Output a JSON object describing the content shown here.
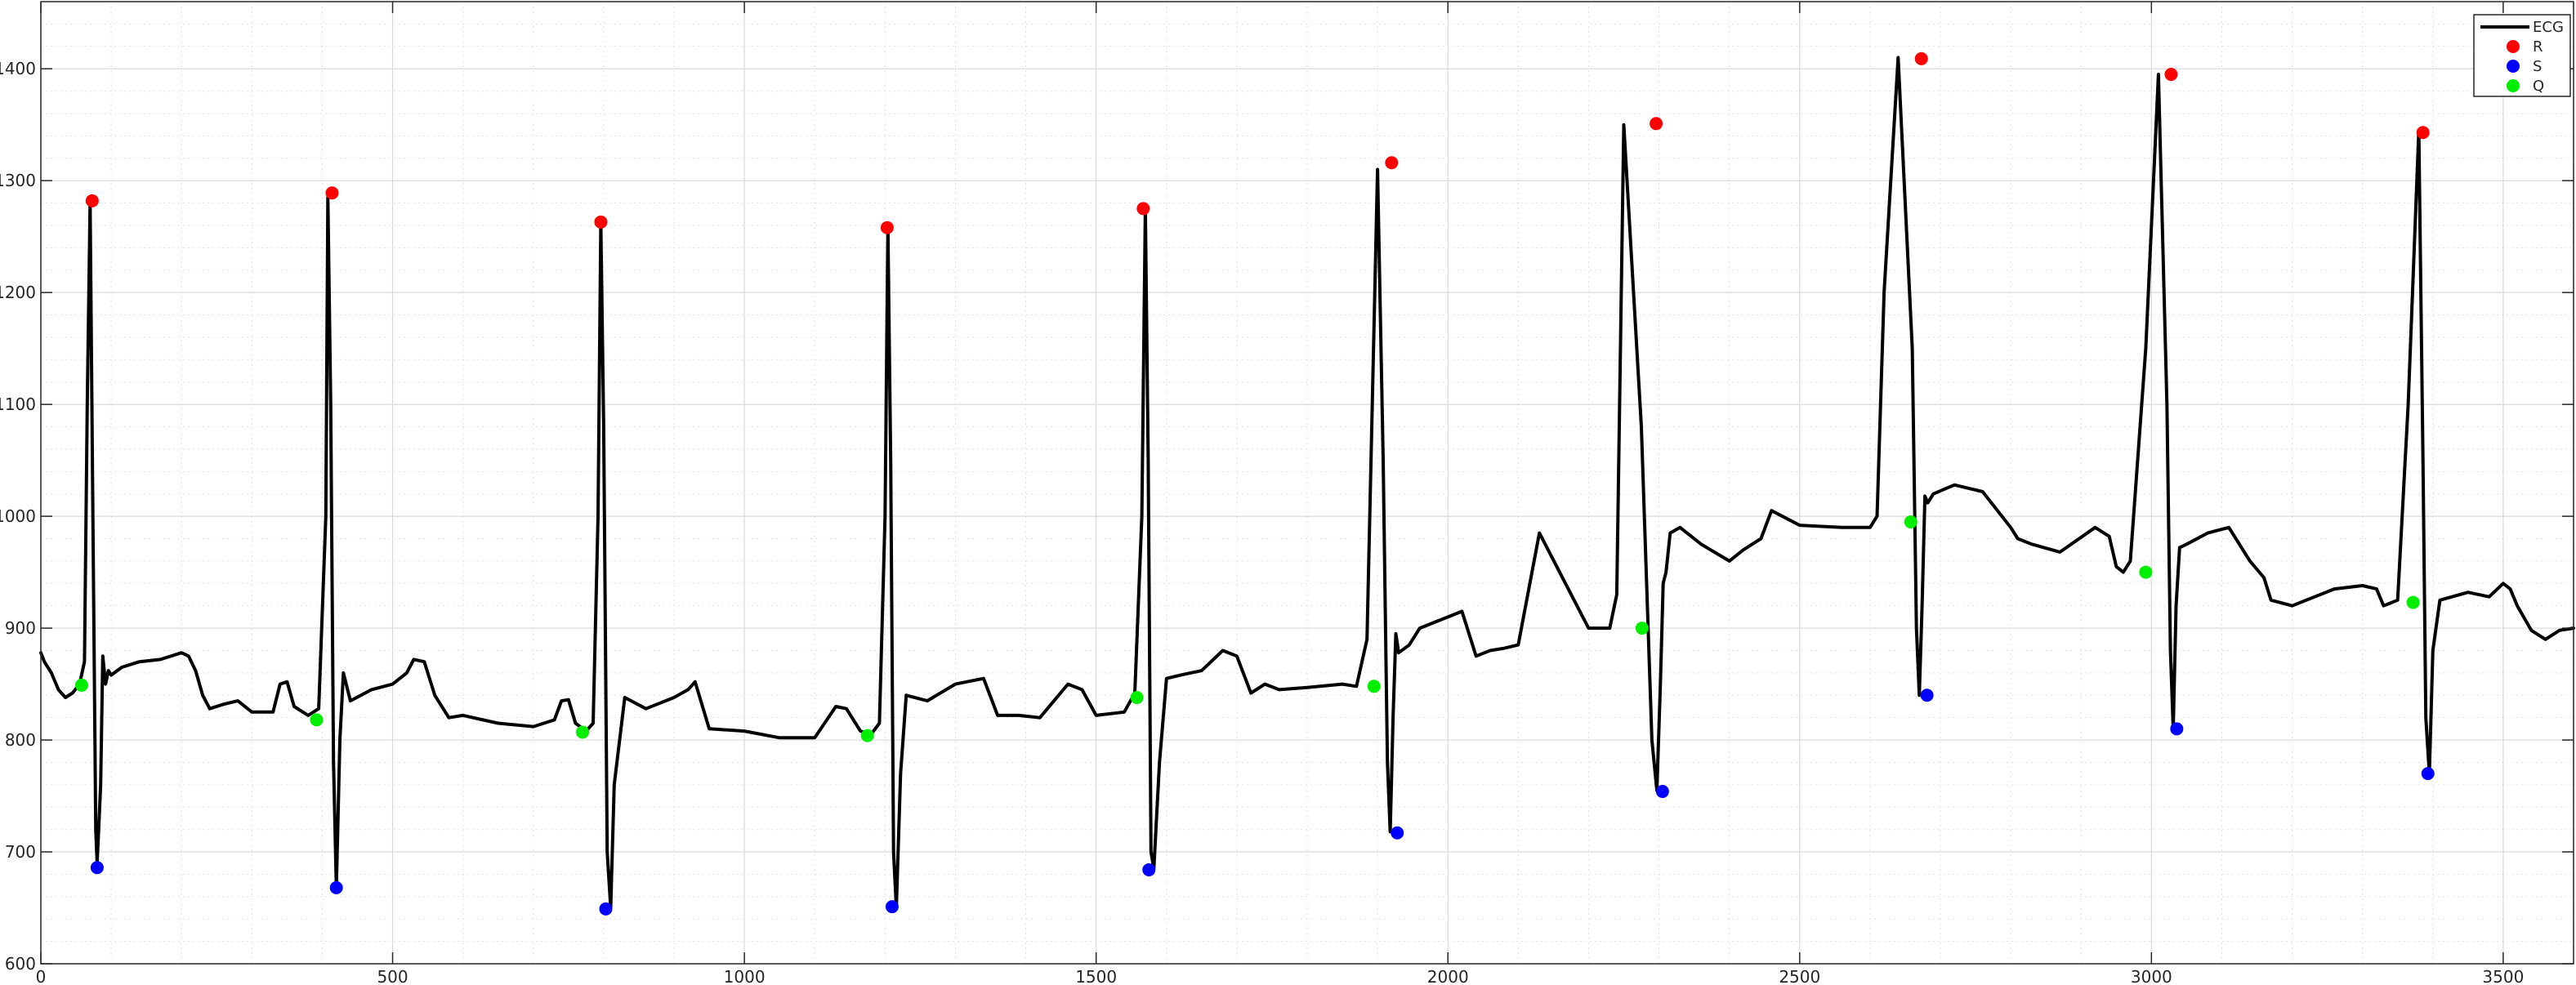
{
  "chart_data": {
    "type": "line",
    "title": "",
    "xlabel": "",
    "ylabel": "",
    "xlim": [
      0,
      3600
    ],
    "ylim": [
      600,
      1460
    ],
    "xticks": [
      0,
      500,
      1000,
      1500,
      2000,
      2500,
      3000,
      3500
    ],
    "yticks": [
      600,
      700,
      800,
      900,
      1000,
      1100,
      1200,
      1300,
      1400
    ],
    "grid": true,
    "minor_grid": true,
    "legend_position": "top-right",
    "series": [
      {
        "name": "ECG",
        "kind": "line",
        "color": "#000000",
        "x": [
          0,
          5,
          15,
          25,
          35,
          45,
          55,
          62,
          66,
          70,
          74,
          78,
          80,
          85,
          88,
          92,
          96,
          100,
          115,
          140,
          170,
          200,
          210,
          220,
          230,
          240,
          260,
          280,
          300,
          330,
          340,
          350,
          360,
          380,
          395,
          405,
          408,
          412,
          416,
          420,
          425,
          430,
          440,
          470,
          500,
          520,
          530,
          545,
          560,
          580,
          600,
          650,
          700,
          730,
          740,
          750,
          760,
          775,
          785,
          792,
          796,
          800,
          805,
          810,
          815,
          830,
          860,
          900,
          920,
          930,
          950,
          1000,
          1050,
          1100,
          1130,
          1145,
          1165,
          1180,
          1192,
          1200,
          1204,
          1208,
          1212,
          1216,
          1222,
          1230,
          1260,
          1300,
          1340,
          1360,
          1390,
          1420,
          1460,
          1480,
          1500,
          1540,
          1555,
          1565,
          1570,
          1574,
          1578,
          1582,
          1590,
          1600,
          1620,
          1650,
          1680,
          1700,
          1720,
          1740,
          1760,
          1800,
          1850,
          1870,
          1885,
          1900,
          1908,
          1914,
          1918,
          1922,
          1926,
          1930,
          1945,
          1960,
          2000,
          2020,
          2040,
          2060,
          2080,
          2100,
          2130,
          2200,
          2230,
          2240,
          2250,
          2275,
          2290,
          2297,
          2302,
          2306,
          2310,
          2316,
          2330,
          2360,
          2400,
          2420,
          2440,
          2445,
          2460,
          2500,
          2560,
          2600,
          2610,
          2620,
          2640,
          2660,
          2666,
          2670,
          2674,
          2678,
          2682,
          2690,
          2720,
          2760,
          2800,
          2810,
          2830,
          2870,
          2920,
          2940,
          2950,
          2960,
          2970,
          2992,
          3010,
          3022,
          3027,
          3031,
          3035,
          3040,
          3050,
          3080,
          3110,
          3140,
          3160,
          3170,
          3200,
          3260,
          3300,
          3320,
          3330,
          3350,
          3365,
          3380,
          3386,
          3390,
          3395,
          3400,
          3410,
          3450,
          3480,
          3500,
          3510,
          3520,
          3540,
          3560,
          3580,
          3600
        ],
        "y": [
          878,
          870,
          860,
          845,
          838,
          842,
          850,
          870,
          1100,
          1280,
          1000,
          720,
          690,
          760,
          875,
          850,
          862,
          858,
          865,
          870,
          872,
          878,
          875,
          862,
          840,
          828,
          832,
          835,
          825,
          825,
          850,
          852,
          830,
          822,
          828,
          1000,
          1285,
          1100,
          780,
          668,
          800,
          860,
          835,
          845,
          850,
          860,
          872,
          870,
          840,
          820,
          822,
          815,
          812,
          818,
          835,
          836,
          815,
          808,
          815,
          1000,
          1262,
          1080,
          700,
          650,
          760,
          838,
          828,
          838,
          845,
          852,
          810,
          808,
          802,
          802,
          830,
          828,
          808,
          805,
          815,
          1000,
          1258,
          1050,
          700,
          650,
          770,
          840,
          835,
          850,
          855,
          822,
          822,
          820,
          850,
          845,
          822,
          825,
          842,
          1000,
          1275,
          1050,
          700,
          685,
          780,
          855,
          858,
          862,
          880,
          875,
          842,
          850,
          845,
          847,
          850,
          848,
          890,
          1310,
          1050,
          780,
          718,
          820,
          895,
          878,
          885,
          900,
          910,
          915,
          875,
          880,
          882,
          885,
          985,
          900,
          900,
          930,
          1350,
          1080,
          800,
          755,
          850,
          940,
          950,
          985,
          990,
          975,
          960,
          970,
          978,
          980,
          1005,
          992,
          990,
          990,
          1000,
          1200,
          1410,
          1150,
          900,
          840,
          920,
          1018,
          1012,
          1020,
          1028,
          1022,
          990,
          980,
          975,
          968,
          990,
          982,
          955,
          950,
          960,
          1150,
          1395,
          1100,
          880,
          810,
          920,
          972,
          975,
          985,
          990,
          960,
          945,
          925,
          920,
          935,
          938,
          935,
          920,
          925,
          1100,
          1345,
          1050,
          820,
          770,
          880,
          925,
          932,
          928,
          940,
          935,
          920,
          898,
          890,
          898,
          900
        ]
      },
      {
        "name": "R",
        "kind": "marker",
        "color": "#ff0000",
        "x": [
          73,
          414,
          796,
          1203,
          1567,
          1920,
          2296,
          2673,
          3028,
          3386
        ],
        "y": [
          1282,
          1289,
          1263,
          1258,
          1275,
          1316,
          1351,
          1409,
          1395,
          1343
        ]
      },
      {
        "name": "S",
        "kind": "marker",
        "color": "#0000ff",
        "x": [
          80,
          420,
          803,
          1210,
          1575,
          1928,
          2305,
          2681,
          3036,
          3393
        ],
        "y": [
          686,
          668,
          649,
          651,
          684,
          717,
          754,
          840,
          810,
          770
        ]
      },
      {
        "name": "Q",
        "kind": "marker",
        "color": "#00ee00",
        "x": [
          58,
          392,
          770,
          1175,
          1558,
          1895,
          2276,
          2658,
          2992,
          3372
        ],
        "y": [
          849,
          818,
          807,
          804,
          838,
          848,
          900,
          995,
          950,
          923
        ]
      }
    ]
  }
}
